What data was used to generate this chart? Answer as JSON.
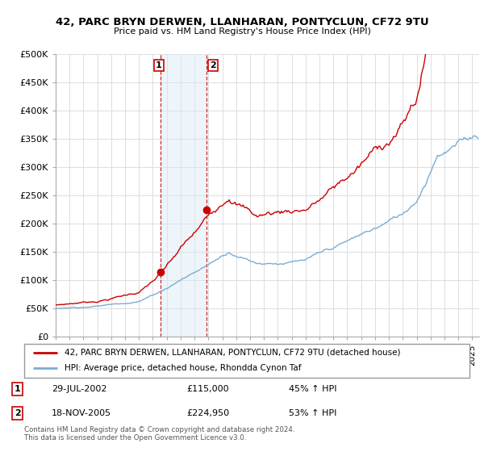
{
  "title_line1": "42, PARC BRYN DERWEN, LLANHARAN, PONTYCLUN, CF72 9TU",
  "title_line2": "Price paid vs. HM Land Registry's House Price Index (HPI)",
  "ylabel_ticks": [
    "£0",
    "£50K",
    "£100K",
    "£150K",
    "£200K",
    "£250K",
    "£300K",
    "£350K",
    "£400K",
    "£450K",
    "£500K"
  ],
  "ytick_values": [
    0,
    50000,
    100000,
    150000,
    200000,
    250000,
    300000,
    350000,
    400000,
    450000,
    500000
  ],
  "ylim": [
    0,
    500000
  ],
  "xlim_start": 1995.0,
  "xlim_end": 2025.5,
  "red_line_color": "#cc0000",
  "blue_line_color": "#7aadd4",
  "shaded_region_color": "#d8e8f5",
  "shaded_x1": 2002.57,
  "shaded_x2": 2005.88,
  "marker1_x": 2002.57,
  "marker1_y": 115000,
  "marker2_x": 2005.88,
  "marker2_y": 224950,
  "marker_color": "#cc0000",
  "legend_red_label": "42, PARC BRYN DERWEN, LLANHARAN, PONTYCLUN, CF72 9TU (detached house)",
  "legend_blue_label": "HPI: Average price, detached house, Rhondda Cynon Taf",
  "transaction1_date": "29-JUL-2002",
  "transaction1_price": "£115,000",
  "transaction1_hpi": "45% ↑ HPI",
  "transaction2_date": "18-NOV-2005",
  "transaction2_price": "£224,950",
  "transaction2_hpi": "53% ↑ HPI",
  "footer_text": "Contains HM Land Registry data © Crown copyright and database right 2024.\nThis data is licensed under the Open Government Licence v3.0.",
  "grid_color": "#dddddd",
  "background_color": "#ffffff"
}
